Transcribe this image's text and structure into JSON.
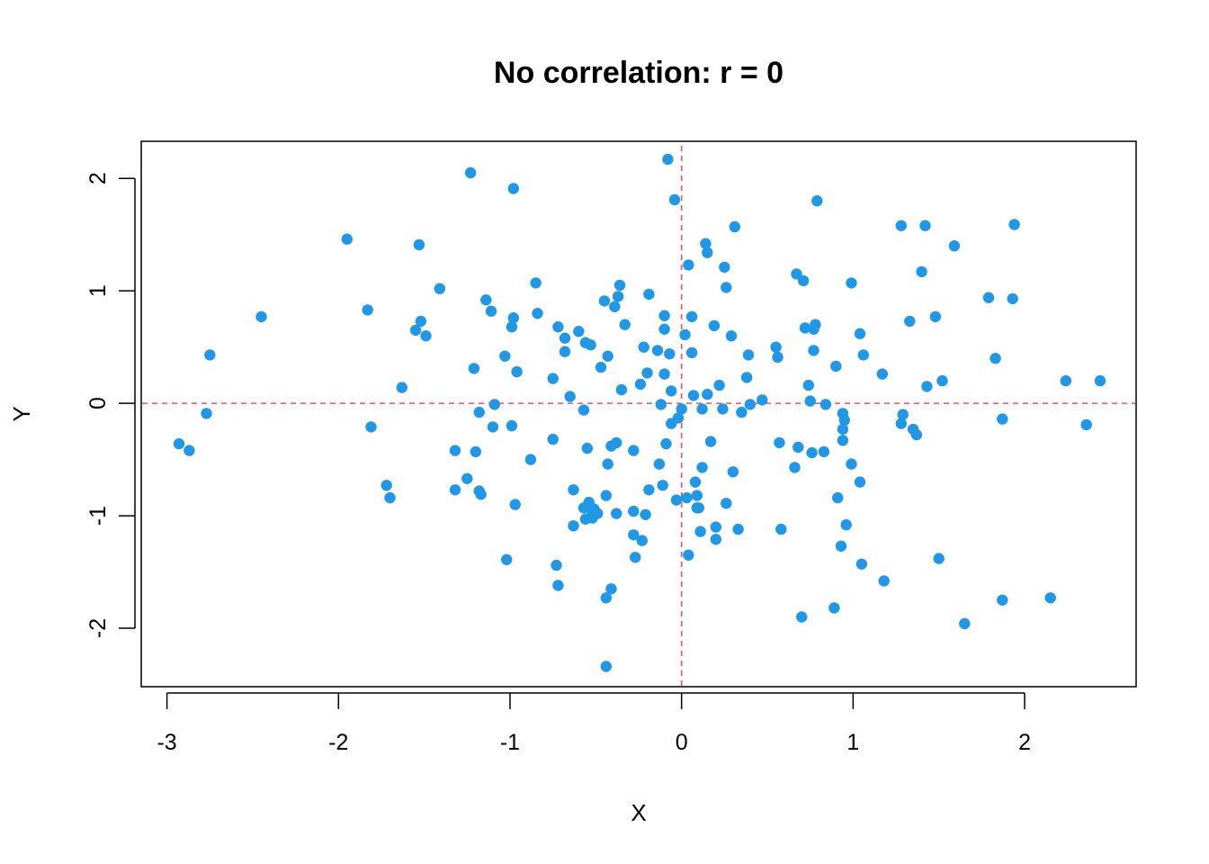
{
  "chart_data": {
    "type": "scatter",
    "title": "No correlation: r = 0",
    "xlabel": "X",
    "ylabel": "Y",
    "xlim": [
      -3.15,
      2.65
    ],
    "ylim": [
      -2.52,
      2.33
    ],
    "xticks": [
      -3,
      -2,
      -1,
      0,
      1,
      2
    ],
    "xtick_labels": [
      "-3",
      "-2",
      "-1",
      "0",
      "1",
      "2"
    ],
    "yticks": [
      -2,
      -1,
      0,
      1,
      2
    ],
    "ytick_labels": [
      "-2",
      "-1",
      "0",
      "1",
      "2"
    ],
    "grid": false,
    "reference_lines": {
      "x": 0,
      "y": 0,
      "style": "dashed",
      "color": "#DF536B"
    },
    "point_color": "#2297E6",
    "points": [
      [
        -2.93,
        -0.36
      ],
      [
        -2.87,
        -0.42
      ],
      [
        -2.77,
        -0.09
      ],
      [
        -2.75,
        0.43
      ],
      [
        -2.45,
        0.77
      ],
      [
        -1.95,
        1.46
      ],
      [
        -1.83,
        0.83
      ],
      [
        -1.81,
        -0.21
      ],
      [
        -1.72,
        -0.73
      ],
      [
        -1.7,
        -0.84
      ],
      [
        -1.63,
        0.14
      ],
      [
        -1.55,
        0.65
      ],
      [
        -1.53,
        1.41
      ],
      [
        -1.52,
        0.73
      ],
      [
        -1.49,
        0.6
      ],
      [
        -1.41,
        1.02
      ],
      [
        -1.32,
        -0.77
      ],
      [
        -1.32,
        -0.42
      ],
      [
        -1.25,
        -0.67
      ],
      [
        -1.23,
        2.05
      ],
      [
        -1.21,
        0.31
      ],
      [
        -1.2,
        -0.43
      ],
      [
        -1.18,
        -0.78
      ],
      [
        -1.17,
        -0.81
      ],
      [
        -1.18,
        -0.08
      ],
      [
        -1.14,
        0.92
      ],
      [
        -1.11,
        0.82
      ],
      [
        -1.09,
        -0.01
      ],
      [
        -1.1,
        -0.21
      ],
      [
        -1.03,
        0.42
      ],
      [
        -1.02,
        -1.39
      ],
      [
        -0.99,
        -0.2
      ],
      [
        -0.99,
        0.68
      ],
      [
        -0.98,
        1.91
      ],
      [
        -0.98,
        0.76
      ],
      [
        -0.97,
        -0.9
      ],
      [
        -0.96,
        0.28
      ],
      [
        -0.88,
        -0.5
      ],
      [
        -0.85,
        1.07
      ],
      [
        -0.84,
        0.8
      ],
      [
        -0.75,
        0.22
      ],
      [
        -0.75,
        -0.32
      ],
      [
        -0.73,
        -1.44
      ],
      [
        -0.72,
        -1.62
      ],
      [
        -0.72,
        0.68
      ],
      [
        -0.68,
        0.58
      ],
      [
        -0.68,
        0.46
      ],
      [
        -0.65,
        0.06
      ],
      [
        -0.63,
        -0.77
      ],
      [
        -0.63,
        -1.09
      ],
      [
        -0.6,
        0.64
      ],
      [
        -0.57,
        -0.06
      ],
      [
        -0.56,
        0.54
      ],
      [
        -0.57,
        -0.93
      ],
      [
        -0.56,
        -1.03
      ],
      [
        -0.55,
        -0.4
      ],
      [
        -0.54,
        -0.88
      ],
      [
        -0.53,
        0.52
      ],
      [
        -0.52,
        -0.98
      ],
      [
        -0.52,
        -1.02
      ],
      [
        -0.51,
        -0.94
      ],
      [
        -0.49,
        -0.98
      ],
      [
        -0.47,
        0.32
      ],
      [
        -0.45,
        0.91
      ],
      [
        -0.44,
        -1.73
      ],
      [
        -0.44,
        -0.82
      ],
      [
        -0.44,
        -2.34
      ],
      [
        -0.43,
        0.42
      ],
      [
        -0.43,
        -0.54
      ],
      [
        -0.41,
        -1.65
      ],
      [
        -0.41,
        -0.38
      ],
      [
        -0.39,
        0.86
      ],
      [
        -0.38,
        -0.35
      ],
      [
        -0.38,
        -0.98
      ],
      [
        -0.37,
        0.95
      ],
      [
        -0.36,
        1.05
      ],
      [
        -0.35,
        0.12
      ],
      [
        -0.33,
        0.7
      ],
      [
        -0.28,
        -0.96
      ],
      [
        -0.28,
        -1.17
      ],
      [
        -0.28,
        -0.42
      ],
      [
        -0.27,
        -1.37
      ],
      [
        -0.24,
        0.17
      ],
      [
        -0.23,
        -1.22
      ],
      [
        -0.22,
        0.5
      ],
      [
        -0.21,
        -0.99
      ],
      [
        -0.2,
        0.27
      ],
      [
        -0.19,
        -0.77
      ],
      [
        -0.19,
        0.97
      ],
      [
        -0.14,
        0.47
      ],
      [
        -0.13,
        -0.54
      ],
      [
        -0.12,
        -0.01
      ],
      [
        -0.11,
        -0.73
      ],
      [
        -0.1,
        0.26
      ],
      [
        -0.1,
        0.66
      ],
      [
        -0.1,
        0.78
      ],
      [
        -0.09,
        -0.36
      ],
      [
        -0.07,
        0.44
      ],
      [
        -0.08,
        2.17
      ],
      [
        -0.06,
        0.11
      ],
      [
        -0.06,
        -0.18
      ],
      [
        -0.04,
        1.81
      ],
      [
        -0.03,
        -0.86
      ],
      [
        -0.02,
        -0.13
      ],
      [
        0.0,
        -0.05
      ],
      [
        0.02,
        0.61
      ],
      [
        0.03,
        -0.84
      ],
      [
        0.04,
        -1.35
      ],
      [
        0.04,
        1.23
      ],
      [
        0.06,
        0.77
      ],
      [
        0.06,
        0.45
      ],
      [
        0.07,
        0.07
      ],
      [
        0.08,
        -0.7
      ],
      [
        0.09,
        -0.82
      ],
      [
        0.09,
        -0.93
      ],
      [
        0.1,
        -0.93
      ],
      [
        0.11,
        -1.14
      ],
      [
        0.12,
        -0.57
      ],
      [
        0.12,
        -0.05
      ],
      [
        0.14,
        1.42
      ],
      [
        0.15,
        1.34
      ],
      [
        0.15,
        0.08
      ],
      [
        0.17,
        -0.34
      ],
      [
        0.19,
        0.69
      ],
      [
        0.2,
        -1.1
      ],
      [
        0.2,
        -1.21
      ],
      [
        0.22,
        0.16
      ],
      [
        0.24,
        -0.05
      ],
      [
        0.25,
        1.21
      ],
      [
        0.26,
        1.03
      ],
      [
        0.26,
        -0.89
      ],
      [
        0.29,
        0.6
      ],
      [
        0.3,
        -0.61
      ],
      [
        0.31,
        1.57
      ],
      [
        0.33,
        -1.12
      ],
      [
        0.35,
        -0.08
      ],
      [
        0.38,
        0.23
      ],
      [
        0.39,
        0.43
      ],
      [
        0.4,
        -0.01
      ],
      [
        0.47,
        0.03
      ],
      [
        0.55,
        0.5
      ],
      [
        0.56,
        0.41
      ],
      [
        0.57,
        -0.35
      ],
      [
        0.58,
        -1.12
      ],
      [
        0.66,
        -0.57
      ],
      [
        0.67,
        1.15
      ],
      [
        0.68,
        -0.39
      ],
      [
        0.7,
        -1.9
      ],
      [
        0.71,
        1.09
      ],
      [
        0.72,
        0.67
      ],
      [
        0.74,
        0.16
      ],
      [
        0.75,
        0.02
      ],
      [
        0.76,
        -0.44
      ],
      [
        0.77,
        0.47
      ],
      [
        0.77,
        0.66
      ],
      [
        0.78,
        0.7
      ],
      [
        0.79,
        1.8
      ],
      [
        0.83,
        -0.43
      ],
      [
        0.84,
        -0.01
      ],
      [
        0.89,
        -1.82
      ],
      [
        0.9,
        0.33
      ],
      [
        0.91,
        -0.84
      ],
      [
        0.93,
        -1.27
      ],
      [
        0.94,
        -0.09
      ],
      [
        0.94,
        -0.23
      ],
      [
        0.94,
        -0.33
      ],
      [
        0.95,
        -0.15
      ],
      [
        0.96,
        -1.08
      ],
      [
        0.99,
        -0.54
      ],
      [
        0.99,
        1.07
      ],
      [
        1.04,
        0.62
      ],
      [
        1.04,
        -0.7
      ],
      [
        1.05,
        -1.43
      ],
      [
        1.06,
        0.43
      ],
      [
        1.17,
        0.26
      ],
      [
        1.18,
        -1.58
      ],
      [
        1.28,
        1.58
      ],
      [
        1.28,
        -0.18
      ],
      [
        1.29,
        -0.1
      ],
      [
        1.33,
        0.73
      ],
      [
        1.35,
        -0.23
      ],
      [
        1.37,
        -0.28
      ],
      [
        1.4,
        1.17
      ],
      [
        1.42,
        1.58
      ],
      [
        1.43,
        0.15
      ],
      [
        1.48,
        0.77
      ],
      [
        1.5,
        -1.38
      ],
      [
        1.52,
        0.2
      ],
      [
        1.59,
        1.4
      ],
      [
        1.65,
        -1.96
      ],
      [
        1.79,
        0.94
      ],
      [
        1.83,
        0.4
      ],
      [
        1.87,
        -0.14
      ],
      [
        1.87,
        -1.75
      ],
      [
        1.93,
        0.93
      ],
      [
        1.94,
        1.59
      ],
      [
        2.15,
        -1.73
      ],
      [
        2.24,
        0.2
      ],
      [
        2.36,
        -0.19
      ],
      [
        2.44,
        0.2
      ]
    ]
  }
}
